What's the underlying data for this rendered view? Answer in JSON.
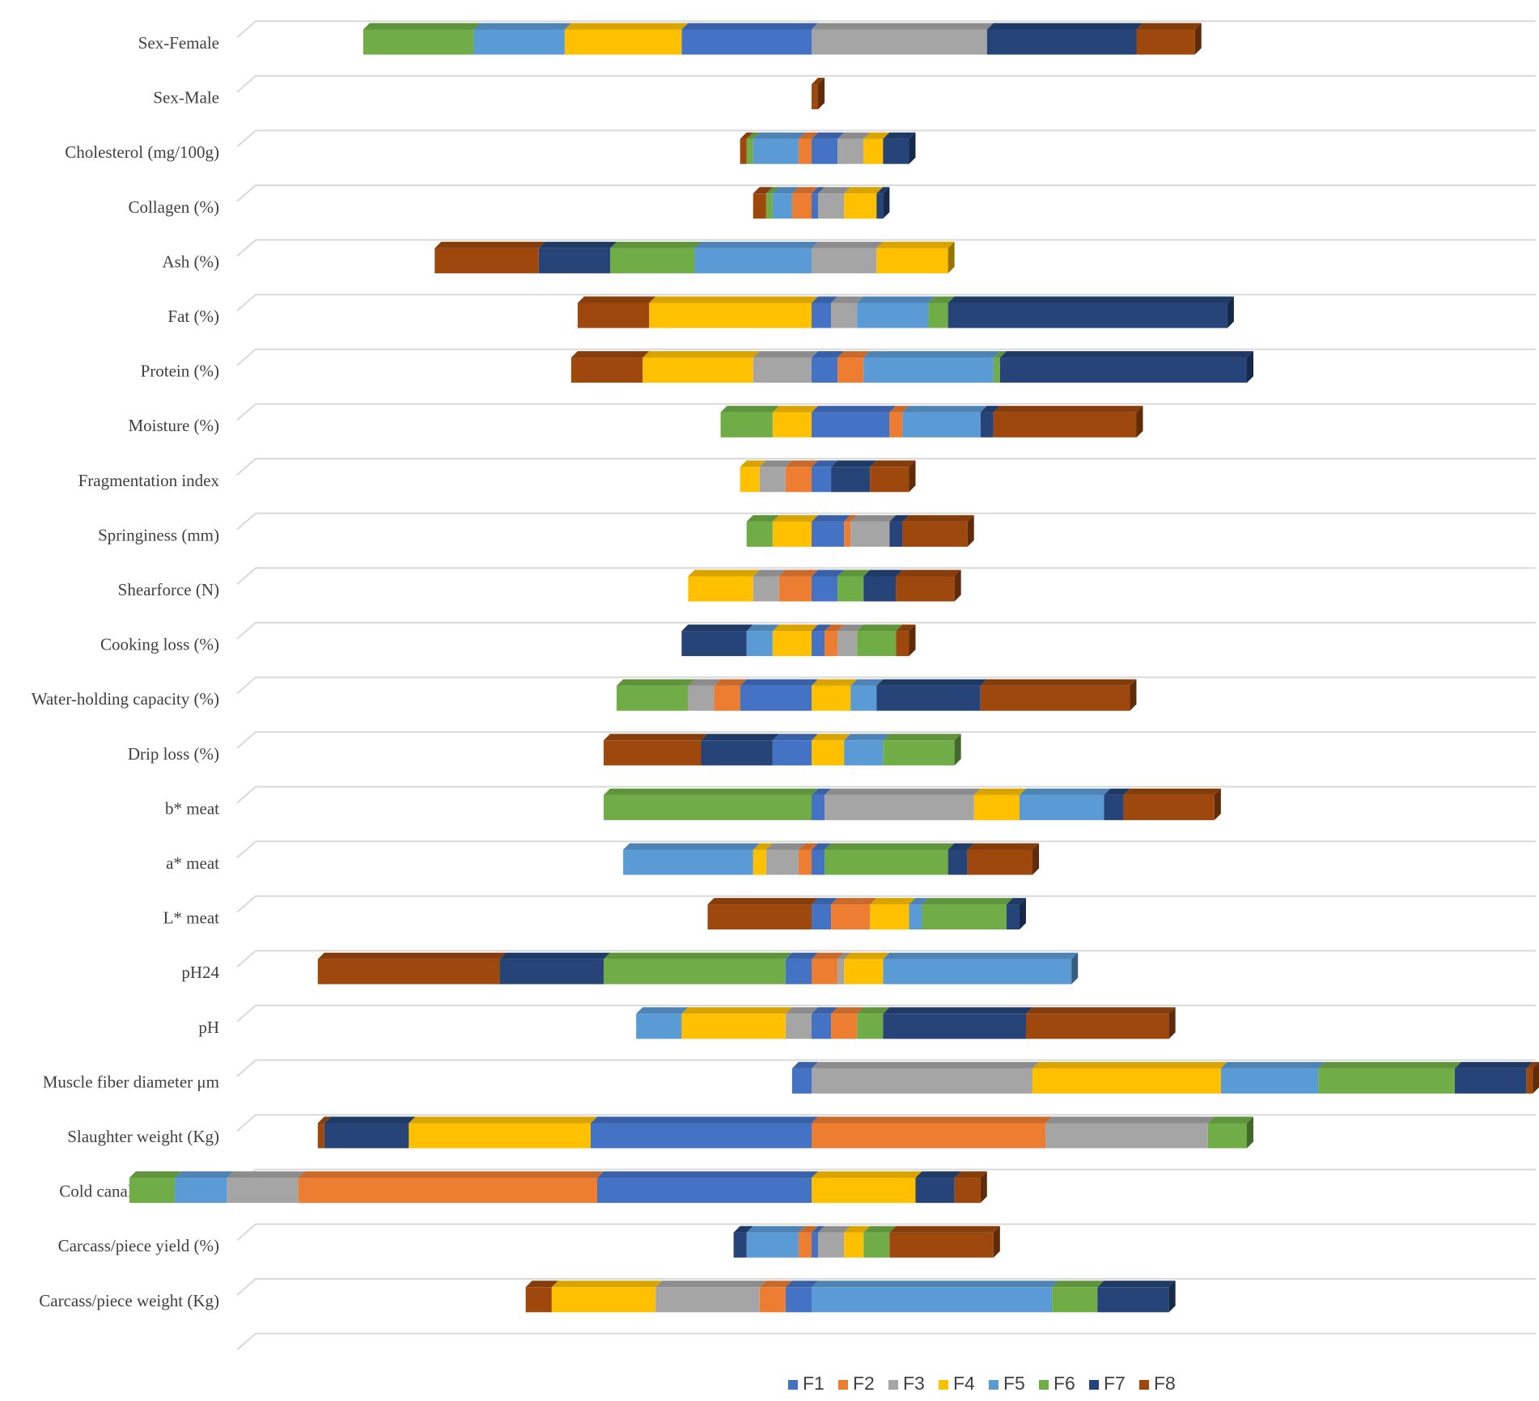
{
  "chart_data": {
    "type": "bar",
    "orientation": "horizontal",
    "stacked": true,
    "style": "3d",
    "title": "",
    "xlabel": "",
    "ylabel": "",
    "grid": true,
    "legend_position": "bottom",
    "x_axis_visible": false,
    "xlim": [
      -10.8,
      12.4
    ],
    "categories": [
      "Sex-Female",
      "Sex-Male",
      "Cholesterol (mg/100g)",
      "Collagen (%)",
      "Ash (%)",
      "Fat (%)",
      "Protein (%)",
      "Moisture (%)",
      "Fragmentation index",
      "Springiness (mm)",
      "Shearforce (N)",
      "Cooking loss (%)",
      "Water-holding capacity (%)",
      "Drip loss (%)",
      "b* meat",
      "a* meat",
      "L* meat",
      "pH24",
      "pH",
      "Muscle fiber diameter μm",
      "Slaughter weight (Kg)",
      "Cold canal weight (Kg)",
      "Carcass/piece yield (%)",
      "Carcass/piece weight (Kg)"
    ],
    "series": [
      {
        "name": "F1",
        "color": "#4472C4",
        "values": [
          -2.0,
          0,
          0.4,
          0.1,
          0,
          0.3,
          0.4,
          1.2,
          0.3,
          0.5,
          0.4,
          0.2,
          -1.1,
          -0.6,
          0.2,
          0.2,
          0.3,
          -0.4,
          0.3,
          -0.3,
          -3.4,
          -3.3,
          0.1,
          -0.4
        ]
      },
      {
        "name": "F2",
        "color": "#ED7D31",
        "values": [
          0,
          0,
          -0.2,
          -0.3,
          0,
          0,
          0.4,
          0.2,
          -0.4,
          0.1,
          -0.5,
          0.2,
          -0.4,
          0.0,
          0.0,
          -0.2,
          0.6,
          0.4,
          0.4,
          0,
          3.6,
          -4.6,
          -0.2,
          -0.4
        ]
      },
      {
        "name": "F3",
        "color": "#A5A5A5",
        "values": [
          2.7,
          0,
          0.4,
          0.4,
          1.0,
          0.4,
          -0.9,
          0,
          -0.4,
          0.6,
          -0.4,
          0.3,
          -0.4,
          0,
          2.3,
          -0.5,
          0,
          0.1,
          -0.4,
          3.4,
          2.5,
          -1.1,
          0.4,
          -1.6
        ]
      },
      {
        "name": "F4",
        "color": "#FFC000",
        "values": [
          -1.8,
          0,
          0.3,
          0.5,
          1.1,
          -2.5,
          -1.7,
          -0.6,
          -0.3,
          -0.6,
          -1.0,
          -0.6,
          0.6,
          0.5,
          0.7,
          -0.2,
          0.6,
          0.6,
          -1.6,
          2.9,
          -2.8,
          1.6,
          0.3,
          -1.6
        ]
      },
      {
        "name": "F5",
        "color": "#5B9BD5",
        "values": [
          -1.4,
          0,
          -0.7,
          -0.3,
          -1.8,
          1.1,
          2.0,
          1.2,
          0,
          0,
          0,
          -0.4,
          0.4,
          0.6,
          1.3,
          -2.0,
          0.2,
          2.9,
          -0.7,
          1.5,
          0,
          -0.8,
          -0.8,
          3.7
        ]
      },
      {
        "name": "F6",
        "color": "#70AD47",
        "values": [
          -1.7,
          0,
          -0.1,
          -0.1,
          -1.3,
          0.3,
          0.1,
          -0.8,
          0,
          -0.4,
          0.4,
          0.6,
          -1.1,
          1.1,
          -3.2,
          1.9,
          1.3,
          -2.8,
          0.4,
          2.1,
          0.6,
          -0.7,
          0.4,
          0.7
        ]
      },
      {
        "name": "F7",
        "color": "#264478",
        "values": [
          2.3,
          0,
          0.4,
          0.1,
          -1.1,
          4.3,
          3.8,
          0.2,
          0.6,
          0.2,
          0.5,
          -1.0,
          1.6,
          -1.1,
          0.3,
          0.3,
          0.2,
          -1.6,
          2.2,
          1.1,
          -1.3,
          0.6,
          -0.2,
          1.1
        ]
      },
      {
        "name": "F8",
        "color": "#9E480E",
        "values": [
          0.9,
          0.1,
          -0.1,
          -0.2,
          -1.6,
          -1.1,
          -1.1,
          2.2,
          0.6,
          1.0,
          0.9,
          0.2,
          2.3,
          -1.5,
          1.4,
          1.0,
          -1.6,
          -2.8,
          2.2,
          0.1,
          -0.1,
          0.4,
          1.6,
          -0.4
        ]
      }
    ]
  }
}
